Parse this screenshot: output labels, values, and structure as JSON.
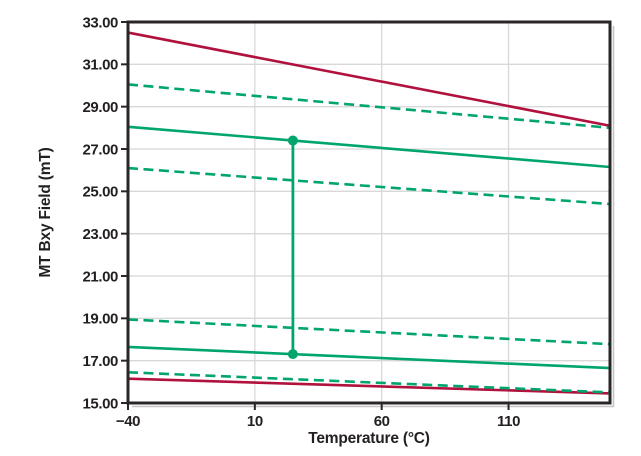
{
  "figure": {
    "background_color": "#FFFFFF",
    "text_color": "#231F20",
    "grid_color": "#D8D8D8",
    "border_color": "#2A2627",
    "shadow_color": "#C4C4C4"
  },
  "chart_data": {
    "type": "line",
    "title": "",
    "xlabel": "Temperature (°C)",
    "ylabel": "MT Bxy Field (mT)",
    "xlim": [
      -40,
      150
    ],
    "ylim": [
      15,
      33
    ],
    "grid": true,
    "legend_position": "none",
    "x_ticks": [
      {
        "value": -40,
        "label": "−40"
      },
      {
        "value": 10,
        "label": "10"
      },
      {
        "value": 60,
        "label": "60"
      },
      {
        "value": 110,
        "label": "110"
      }
    ],
    "y_ticks": [
      {
        "value": 33,
        "label": "33.00"
      },
      {
        "value": 31,
        "label": "31.00"
      },
      {
        "value": 29,
        "label": "29.00"
      },
      {
        "value": 27,
        "label": "27.00"
      },
      {
        "value": 25,
        "label": "25.00"
      },
      {
        "value": 23,
        "label": "23.00"
      },
      {
        "value": 21,
        "label": "21.00"
      },
      {
        "value": 19,
        "label": "19.00"
      },
      {
        "value": 17,
        "label": "17.00"
      },
      {
        "value": 15,
        "label": "15.00"
      }
    ],
    "series": [
      {
        "name": "red-line-upper",
        "color": "#B1123D",
        "style": "dashed",
        "x": [
          -40,
          150
        ],
        "y": [
          30.05,
          28.0
        ],
        "note": "drawn-under-red",
        "render_style": "dashed-green-under"
      },
      {
        "name": "green-dashed-upper-1",
        "color": "#00A56E",
        "style": "dashed",
        "x": [
          -40,
          150
        ],
        "y": [
          30.05,
          28.0
        ]
      },
      {
        "name": "red-solid-upper",
        "color": "#B1123D",
        "style": "solid",
        "x": [
          -40,
          150
        ],
        "y": [
          32.5,
          28.1
        ]
      },
      {
        "name": "green-solid-upper",
        "color": "#00A56E",
        "style": "solid",
        "x": [
          -40,
          150
        ],
        "y": [
          28.05,
          26.15
        ]
      },
      {
        "name": "green-dashed-upper-2",
        "color": "#00A56E",
        "style": "dashed",
        "x": [
          -40,
          150
        ],
        "y": [
          26.1,
          24.4
        ]
      },
      {
        "name": "green-dashed-lower-1",
        "color": "#00A56E",
        "style": "dashed",
        "x": [
          -40,
          150
        ],
        "y": [
          18.95,
          17.78
        ]
      },
      {
        "name": "green-solid-lower",
        "color": "#00A56E",
        "style": "solid",
        "x": [
          -40,
          150
        ],
        "y": [
          17.65,
          16.65
        ]
      },
      {
        "name": "red-solid-lower",
        "color": "#B1123D",
        "style": "solid",
        "x": [
          -40,
          150
        ],
        "y": [
          16.15,
          15.45
        ]
      },
      {
        "name": "green-dashed-lower-2",
        "color": "#00A56E",
        "style": "dashed",
        "x": [
          -40,
          150
        ],
        "y": [
          16.45,
          15.5
        ]
      }
    ],
    "annotation_marker": {
      "type": "vertical-connector",
      "x": 25,
      "y_bottom": 17.31,
      "y_top": 27.4,
      "color": "#00A56E",
      "endpoints": "filled-circles",
      "endpoint_radius": 5
    }
  }
}
